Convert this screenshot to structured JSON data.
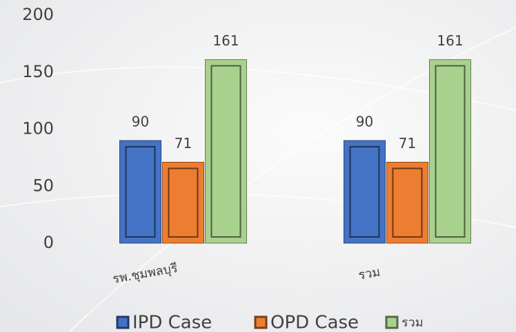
{
  "chart_data": {
    "type": "bar",
    "categories": [
      "รพ.ชุมพลบุรี",
      "รวม"
    ],
    "series": [
      {
        "name": "IPD Case",
        "color": "#4472c4",
        "values": [
          90,
          90
        ]
      },
      {
        "name": "OPD Case",
        "color": "#ed7d31",
        "values": [
          71,
          71
        ]
      },
      {
        "name": "รวม",
        "color": "#a9d18e",
        "values": [
          161,
          161
        ]
      }
    ],
    "ylim": [
      0,
      200
    ],
    "yticks": [
      0,
      50,
      100,
      150,
      200
    ],
    "grid": false,
    "legend": "bottom"
  }
}
